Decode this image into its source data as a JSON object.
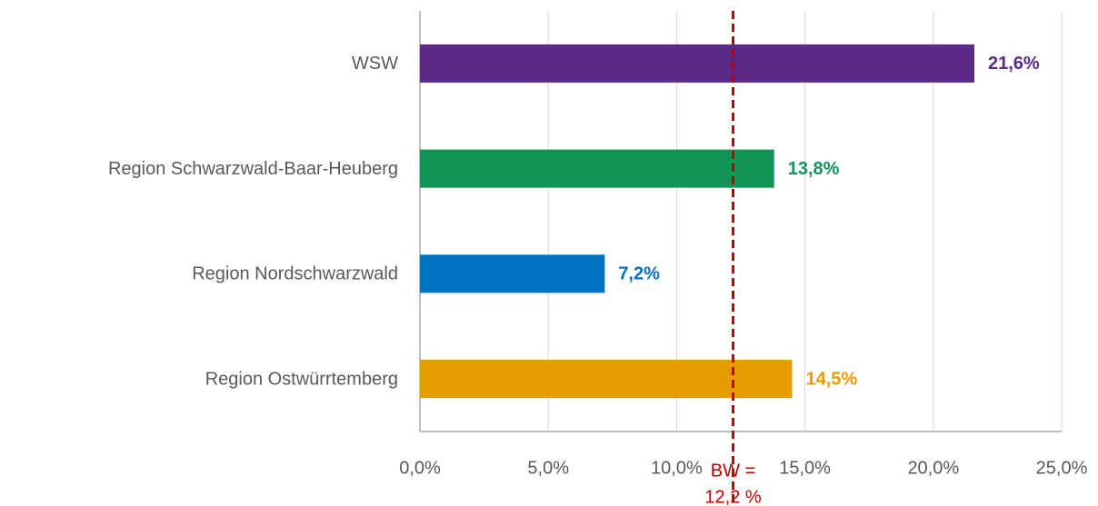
{
  "chart_data": {
    "type": "hbar",
    "categories": [
      "WSW",
      "Region Schwarzwald-Baar-Heuberg",
      "Region Nordschwarzwald",
      "Region Ostwürrtemberg"
    ],
    "values": [
      21.6,
      13.8,
      7.2,
      14.5
    ],
    "value_labels": [
      "21,6%",
      "13,8%",
      "7,2%",
      "14,5%"
    ],
    "colors": [
      "#5b2a86",
      "#119456",
      "#0070c0",
      "#e59c00"
    ],
    "xlim": [
      0,
      25
    ],
    "xticks": [
      {
        "value": 0,
        "label": "0,0%"
      },
      {
        "value": 5,
        "label": "5,0%"
      },
      {
        "value": 10,
        "label": "10,0%"
      },
      {
        "value": 15,
        "label": "15,0%"
      },
      {
        "value": 20,
        "label": "20,0%"
      },
      {
        "value": 25,
        "label": "25,0%"
      }
    ],
    "grid": true,
    "reference_line": {
      "value": 12.2,
      "label": [
        "BW =",
        "12,2 %"
      ],
      "color": "#c00000"
    }
  }
}
